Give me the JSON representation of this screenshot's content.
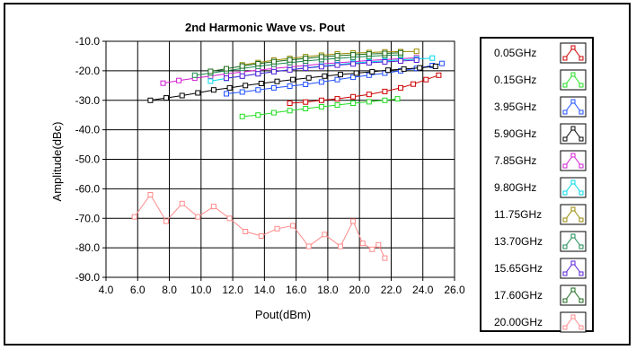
{
  "chart_data": {
    "type": "line",
    "title": "2nd Harmonic Wave vs. Pout",
    "xlabel": "Pout(dBm)",
    "ylabel": "Amplitude(dBc)",
    "xlim": [
      4.0,
      26.0
    ],
    "ylim": [
      -90.0,
      -10.0
    ],
    "x_ticks": [
      "4.0",
      "6.0",
      "8.0",
      "10.0",
      "12.0",
      "14.0",
      "16.0",
      "18.0",
      "20.0",
      "22.0",
      "24.0",
      "26.0"
    ],
    "y_ticks": [
      "-10.0",
      "-20.0",
      "-30.0",
      "-40.0",
      "-50.0",
      "-60.0",
      "-70.0",
      "-80.0",
      "-90.0"
    ],
    "grid": true,
    "legend_position": "right",
    "series": [
      {
        "name": "0.05GHz",
        "color": "#cc0000",
        "x": [
          15.6,
          16.6,
          17.6,
          18.6,
          19.6,
          20.6,
          21.6,
          22.6,
          23.4,
          24.2,
          25.0
        ],
        "y": [
          -31.0,
          -30.6,
          -30.0,
          -29.5,
          -28.8,
          -28.0,
          -27.0,
          -25.8,
          -24.5,
          -23.0,
          -21.5
        ]
      },
      {
        "name": "0.15GHz",
        "color": "#22dd22",
        "x": [
          12.6,
          13.6,
          14.6,
          15.6,
          16.6,
          17.6,
          18.6,
          19.6,
          20.6,
          21.6,
          22.4
        ],
        "y": [
          -35.5,
          -35.0,
          -34.2,
          -33.5,
          -32.8,
          -32.2,
          -31.6,
          -31.0,
          -30.5,
          -30.0,
          -29.5
        ]
      },
      {
        "name": "3.95GHz",
        "color": "#1f4fff",
        "x": [
          11.6,
          12.6,
          13.6,
          14.6,
          15.6,
          16.6,
          17.6,
          18.6,
          19.6,
          20.6,
          21.6,
          22.6,
          23.6,
          24.6,
          25.2
        ],
        "y": [
          -27.8,
          -27.2,
          -26.5,
          -25.8,
          -25.2,
          -24.6,
          -23.8,
          -23.0,
          -22.2,
          -21.5,
          -20.8,
          -20.0,
          -19.2,
          -18.2,
          -17.5
        ]
      },
      {
        "name": "5.90GHz",
        "color": "#000000",
        "x": [
          6.8,
          7.8,
          8.8,
          9.8,
          10.8,
          11.8,
          12.8,
          13.8,
          14.8,
          15.8,
          16.8,
          17.8,
          18.8,
          19.8,
          20.8,
          21.8,
          22.8,
          23.8,
          24.8
        ],
        "y": [
          -30.0,
          -29.2,
          -28.4,
          -27.5,
          -26.5,
          -25.8,
          -25.0,
          -24.3,
          -23.6,
          -23.0,
          -22.4,
          -21.8,
          -21.3,
          -20.8,
          -20.3,
          -19.8,
          -19.4,
          -19.0,
          -18.5
        ]
      },
      {
        "name": "7.85GHz",
        "color": "#d01fd0",
        "x": [
          7.6,
          8.6,
          9.6,
          10.6,
          11.6,
          12.6,
          13.6,
          14.6,
          15.6,
          16.6,
          17.6,
          18.6,
          19.6,
          20.6,
          21.6,
          22.6,
          23.6
        ],
        "y": [
          -24.2,
          -23.3,
          -22.5,
          -21.8,
          -21.0,
          -20.4,
          -19.8,
          -19.2,
          -18.7,
          -18.2,
          -17.7,
          -17.3,
          -16.9,
          -16.5,
          -16.2,
          -15.9,
          -15.6
        ]
      },
      {
        "name": "9.80GHz",
        "color": "#00d8e8",
        "x": [
          10.6,
          11.6,
          12.6,
          13.6,
          14.6,
          15.6,
          16.6,
          17.6,
          18.6,
          19.6,
          20.6,
          21.6,
          22.6,
          23.6,
          24.6
        ],
        "y": [
          -23.5,
          -22.6,
          -21.8,
          -21.0,
          -20.3,
          -19.6,
          -19.0,
          -18.4,
          -17.9,
          -17.4,
          -17.0,
          -16.6,
          -16.3,
          -16.0,
          -15.7
        ]
      },
      {
        "name": "11.75GHz",
        "color": "#9a8a00",
        "x": [
          12.6,
          13.6,
          14.6,
          15.6,
          16.6,
          17.6,
          18.6,
          19.6,
          20.6,
          21.6,
          22.6,
          23.6
        ],
        "y": [
          -18.0,
          -17.2,
          -16.4,
          -15.8,
          -15.2,
          -14.7,
          -14.3,
          -14.0,
          -13.8,
          -13.6,
          -13.5,
          -13.4
        ]
      },
      {
        "name": "13.70GHz",
        "color": "#1a8a50",
        "x": [
          9.6,
          10.6,
          11.6,
          12.6,
          13.6,
          14.6,
          15.6,
          16.6,
          17.6,
          18.6,
          19.6,
          20.6,
          21.6,
          22.6
        ],
        "y": [
          -21.5,
          -20.8,
          -20.0,
          -19.2,
          -18.5,
          -17.8,
          -17.2,
          -16.7,
          -16.2,
          -15.8,
          -15.4,
          -15.1,
          -14.8,
          -14.6
        ]
      },
      {
        "name": "15.65GHz",
        "color": "#5a1fd8",
        "x": [
          11.6,
          12.6,
          13.6,
          14.6,
          15.6,
          16.6,
          17.6,
          18.6,
          19.6,
          20.6,
          21.6,
          22.6,
          23.6
        ],
        "y": [
          -22.5,
          -21.8,
          -21.0,
          -20.3,
          -19.7,
          -19.1,
          -18.6,
          -18.1,
          -17.7,
          -17.3,
          -17.0,
          -16.7,
          -16.4
        ]
      },
      {
        "name": "17.60GHz",
        "color": "#1a6a1a",
        "x": [
          10.6,
          11.6,
          12.6,
          13.6,
          14.6,
          15.6,
          16.6,
          17.6,
          18.6,
          19.6,
          20.6,
          21.6,
          22.6
        ],
        "y": [
          -20.2,
          -19.3,
          -18.4,
          -17.6,
          -16.9,
          -16.3,
          -15.8,
          -15.3,
          -14.9,
          -14.6,
          -14.3,
          -14.1,
          -13.9
        ]
      },
      {
        "name": "20.00GHz",
        "color": "#ff8a8a",
        "x": [
          5.8,
          6.8,
          7.8,
          8.8,
          9.8,
          10.8,
          11.8,
          12.8,
          13.8,
          14.8,
          15.8,
          16.8,
          17.8,
          18.8,
          19.6,
          20.2,
          20.8,
          21.2,
          21.6
        ],
        "y": [
          -69.5,
          -62.0,
          -71.0,
          -65.0,
          -69.5,
          -66.0,
          -70.0,
          -74.5,
          -76.0,
          -73.5,
          -72.5,
          -79.5,
          -75.5,
          -79.5,
          -71.0,
          -78.5,
          -80.5,
          -79.0,
          -83.5
        ]
      }
    ]
  }
}
